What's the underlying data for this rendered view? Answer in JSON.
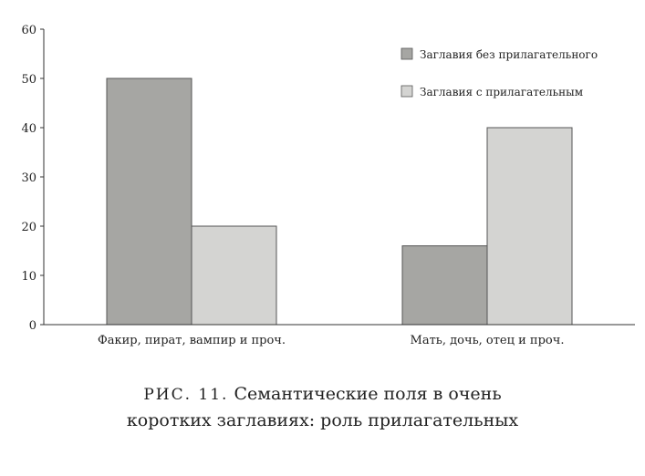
{
  "chart_data": {
    "type": "bar",
    "categories": [
      "Факир, пират, вампир и проч.",
      "Мать, дочь, отец и проч."
    ],
    "series": [
      {
        "name": "Заглавия без прилагательного",
        "values": [
          50,
          16
        ],
        "color": "#a6a6a3"
      },
      {
        "name": "Заглавия с прилагательным",
        "values": [
          20,
          40
        ],
        "color": "#d4d4d2"
      }
    ],
    "ylim": [
      0,
      60
    ],
    "yticks": [
      0,
      10,
      20,
      30,
      40,
      50,
      60
    ],
    "grid": false,
    "legend_position": "top-right"
  },
  "caption": {
    "figure_label": "РИС. 11.",
    "line1": "Семантические поля в очень",
    "line2": "коротких заглавиях: роль прилагательных"
  }
}
